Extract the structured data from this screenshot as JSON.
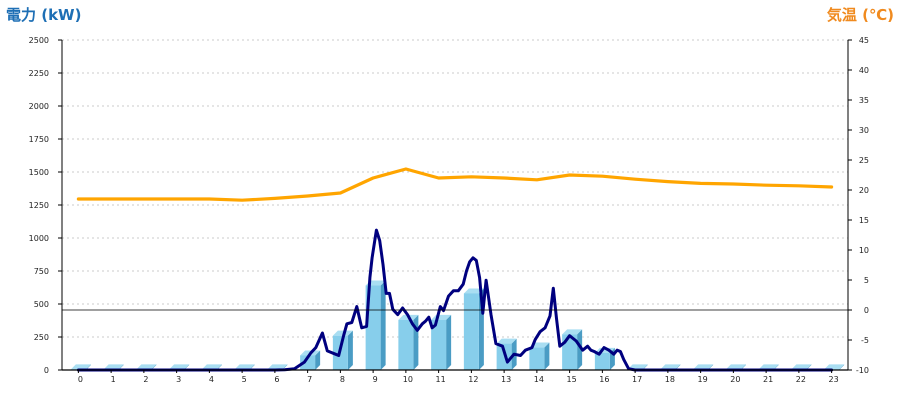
{
  "colors": {
    "left_title": "#1e6fb5",
    "right_title": "#f08a1e",
    "bar_front": "#87ceeb",
    "bar_side": "#4a9cc4",
    "bar_top": "#a9def2",
    "power_line": "#00007f",
    "temp_line": "#ffa500",
    "grid": "#bbbbbb",
    "axis": "#000000"
  },
  "chart_data": {
    "type": "bar",
    "left_axis_title": "電力 (kW)",
    "right_axis_title": "気温 (℃)",
    "left_ylim": [
      0,
      2500
    ],
    "right_ylim": [
      -10,
      45
    ],
    "left_ticks": [
      "0",
      "250",
      "500",
      "750",
      "1000",
      "1250",
      "1500",
      "1750",
      "2000",
      "2250",
      "2500"
    ],
    "right_ticks": [
      "-10",
      "-5",
      "0",
      "5",
      "10",
      "15",
      "20",
      "25",
      "30",
      "35",
      "40",
      "45"
    ],
    "categories": [
      "0",
      "1",
      "2",
      "3",
      "4",
      "5",
      "6",
      "7",
      "8",
      "9",
      "10",
      "11",
      "12",
      "13",
      "14",
      "15",
      "16",
      "17",
      "18",
      "19",
      "20",
      "21",
      "22",
      "23"
    ],
    "grid": "horizontal dashed",
    "series": [
      {
        "kind": "bar",
        "axis": "left",
        "values": [
          5,
          5,
          5,
          5,
          5,
          5,
          5,
          110,
          260,
          640,
          380,
          380,
          580,
          200,
          170,
          270,
          130,
          5,
          5,
          5,
          5,
          5,
          5,
          5
        ]
      },
      {
        "kind": "line",
        "axis": "left",
        "x": [
          0,
          1,
          2,
          3,
          4,
          5,
          6,
          6.3,
          6.6,
          6.9,
          7.1,
          7.25,
          7.45,
          7.6,
          7.85,
          7.95,
          8.1,
          8.2,
          8.35,
          8.5,
          8.65,
          8.8,
          8.9,
          8.97,
          9.1,
          9.2,
          9.3,
          9.4,
          9.5,
          9.6,
          9.75,
          9.9,
          10.05,
          10.2,
          10.35,
          10.5,
          10.6,
          10.7,
          10.8,
          10.9,
          11.05,
          11.15,
          11.3,
          11.45,
          11.6,
          11.75,
          11.85,
          11.95,
          12.05,
          12.15,
          12.25,
          12.35,
          12.45,
          12.6,
          12.75,
          12.95,
          13.1,
          13.3,
          13.5,
          13.65,
          13.85,
          13.95,
          14.1,
          14.25,
          14.4,
          14.5,
          14.6,
          14.7,
          14.85,
          15.0,
          15.2,
          15.4,
          15.55,
          15.65,
          15.75,
          15.9,
          16.05,
          16.2,
          16.35,
          16.45,
          16.55,
          16.65,
          16.8,
          17,
          18,
          19,
          20,
          21,
          22,
          23
        ],
        "values": [
          0,
          0,
          0,
          0,
          0,
          0,
          0,
          2,
          10,
          60,
          130,
          170,
          280,
          145,
          120,
          110,
          260,
          350,
          360,
          480,
          320,
          330,
          700,
          850,
          1060,
          980,
          800,
          580,
          580,
          460,
          420,
          470,
          420,
          350,
          300,
          350,
          370,
          400,
          320,
          340,
          480,
          450,
          560,
          600,
          600,
          650,
          750,
          820,
          850,
          830,
          700,
          430,
          680,
          420,
          200,
          180,
          60,
          120,
          110,
          150,
          170,
          230,
          290,
          320,
          410,
          620,
          390,
          180,
          210,
          260,
          220,
          150,
          180,
          150,
          140,
          120,
          170,
          150,
          120,
          150,
          140,
          80,
          10,
          0,
          0,
          0,
          0,
          0,
          0,
          0
        ]
      },
      {
        "kind": "line",
        "axis": "right",
        "x": [
          0,
          1,
          2,
          3,
          4,
          5,
          6,
          7,
          8,
          9,
          10,
          11,
          12,
          13,
          14,
          15,
          16,
          17,
          18,
          19,
          20,
          21,
          22,
          23
        ],
        "values": [
          18.5,
          18.5,
          18.5,
          18.5,
          18.5,
          18.3,
          18.6,
          19,
          19.5,
          22,
          23.5,
          22,
          22.2,
          22.0,
          21.7,
          22.5,
          22.3,
          21.8,
          21.4,
          21.1,
          21.0,
          20.8,
          20.7,
          20.5
        ]
      }
    ],
    "threshold": {
      "axis": "right",
      "value": 0
    }
  }
}
